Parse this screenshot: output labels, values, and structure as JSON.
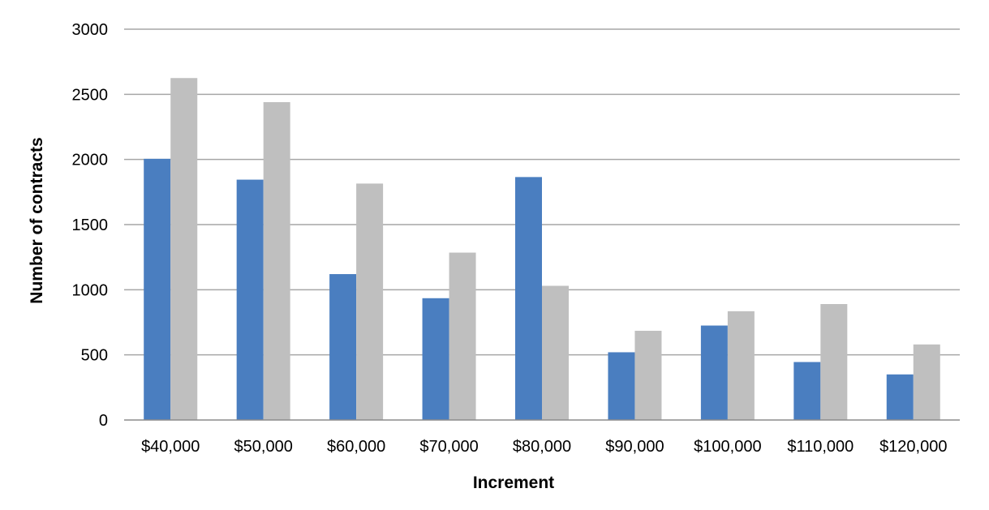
{
  "chart_data": {
    "type": "bar",
    "categories": [
      "$40,000",
      "$50,000",
      "$60,000",
      "$70,000",
      "$80,000",
      "$90,000",
      "$100,000",
      "$110,000",
      "$120,000"
    ],
    "series": [
      {
        "values": [
          2005,
          1845,
          1120,
          935,
          1865,
          520,
          725,
          445,
          350
        ]
      },
      {
        "values": [
          2625,
          2440,
          1815,
          1285,
          1030,
          685,
          835,
          890,
          580
        ]
      }
    ],
    "colors": [
      "#4a7ec0",
      "#bfbfbf"
    ],
    "xlabel": "Increment",
    "ylabel": "Number of contracts",
    "ylim": [
      0,
      3000
    ],
    "yticks": [
      0,
      500,
      1000,
      1500,
      2000,
      2500,
      3000
    ],
    "grid": true,
    "legend": "none"
  }
}
